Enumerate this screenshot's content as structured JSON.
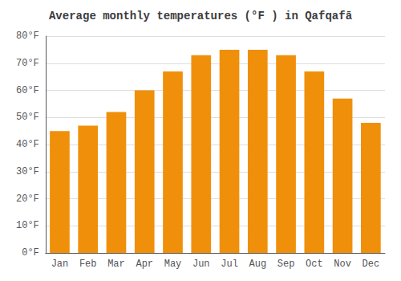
{
  "chart_data": {
    "type": "bar",
    "title": "Average monthly temperatures (°F ) in Qafqafā",
    "categories": [
      "Jan",
      "Feb",
      "Mar",
      "Apr",
      "May",
      "Jun",
      "Jul",
      "Aug",
      "Sep",
      "Oct",
      "Nov",
      "Dec"
    ],
    "values": [
      45,
      47,
      52,
      60,
      67,
      73,
      75,
      75,
      73,
      67,
      57,
      48
    ],
    "color": "#F0900A",
    "ylim": [
      0,
      80
    ],
    "yticks": [
      {
        "value": 0,
        "label": "0°F"
      },
      {
        "value": 10,
        "label": "10°F"
      },
      {
        "value": 20,
        "label": "20°F"
      },
      {
        "value": 30,
        "label": "30°F"
      },
      {
        "value": 40,
        "label": "40°F"
      },
      {
        "value": 50,
        "label": "50°F"
      },
      {
        "value": 60,
        "label": "60°F"
      },
      {
        "value": 70,
        "label": "70°F"
      },
      {
        "value": 80,
        "label": "80°F"
      }
    ],
    "grid": true
  }
}
